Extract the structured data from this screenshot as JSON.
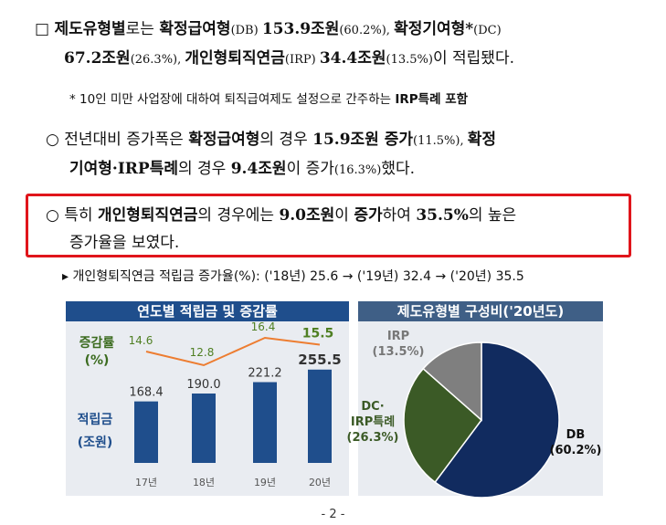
{
  "para1": {
    "bullet": "□",
    "l1": [
      "제도유형별",
      "로는 ",
      "확정급여형",
      "(DB) ",
      "153.9조원",
      "(60.2%), ",
      "확정기여형*",
      "(DC)"
    ],
    "l2": [
      "67.2조원",
      "(26.3%), ",
      "개인형퇴직연금",
      "(IRP) ",
      "34.4조원",
      "(13.5%)",
      "이 적립됐다."
    ]
  },
  "note": {
    "text": "* 10인 미만 사업장에 대하여 퇴직급여제도 설정으로 간주하는 ",
    "bold": "IRP특례 포함"
  },
  "para2": {
    "bullet": "○",
    "l1": [
      "전년대비 증가폭은 ",
      "확정급여형",
      "의 경우 ",
      "15.9조원 증가",
      "(11.5%), ",
      "확정"
    ],
    "l2": [
      "기여형·IRP특례",
      "의 경우 ",
      "9.4조원",
      "이 증가",
      "(16.3%)",
      "했다."
    ]
  },
  "para3": {
    "bullet": "○",
    "l1": [
      "특히 ",
      "개인형퇴직연금",
      "의 경우에는 ",
      "9.0조원",
      "이 ",
      "증가",
      "하여 ",
      "35.5%",
      "의 높은"
    ],
    "l2": "증가율을 보였다."
  },
  "subline": "▸ 개인형퇴직연금 적립금 증가율(%): ('18년) 25.6 → ('19년) 32.4 → ('20년) 35.5",
  "chart_data": [
    {
      "type": "bar",
      "title": "연도별 적립금 및 증감률",
      "categories": [
        "17년",
        "18년",
        "19년",
        "20년"
      ],
      "series": [
        {
          "name": "적립금 (조원)",
          "values": [
            168.4,
            190.0,
            221.2,
            255.5
          ],
          "color": "#1f4e8c"
        },
        {
          "name": "증감률 (%)",
          "type": "line",
          "values": [
            14.6,
            12.8,
            16.4,
            15.5
          ],
          "color": "#ed7d31"
        }
      ],
      "value_labels": [
        "168.4",
        "190.0",
        "221.2",
        "255.5"
      ],
      "rate_labels": [
        "14.6",
        "12.8",
        "16.4",
        "15.5"
      ],
      "axis_labels": {
        "rate": [
          "증감률",
          "(%)"
        ],
        "amount": [
          "적립금",
          "(조원)"
        ]
      },
      "legend": "left"
    },
    {
      "type": "pie",
      "title": "제도유형별 구성비('20년도)",
      "slices": [
        {
          "name": "DB",
          "value": 60.2,
          "color": "#112b5f",
          "label": [
            "DB",
            "(60.2%)"
          ]
        },
        {
          "name": "DC·IRP특례",
          "value": 26.3,
          "color": "#3b5a26",
          "label": [
            "DC·",
            "IRP특례",
            "(26.3%)"
          ]
        },
        {
          "name": "IRP",
          "value": 13.5,
          "color": "#7f7f7f",
          "label": [
            "IRP",
            "(13.5%)"
          ]
        }
      ]
    }
  ],
  "page_number": "- 2 -"
}
